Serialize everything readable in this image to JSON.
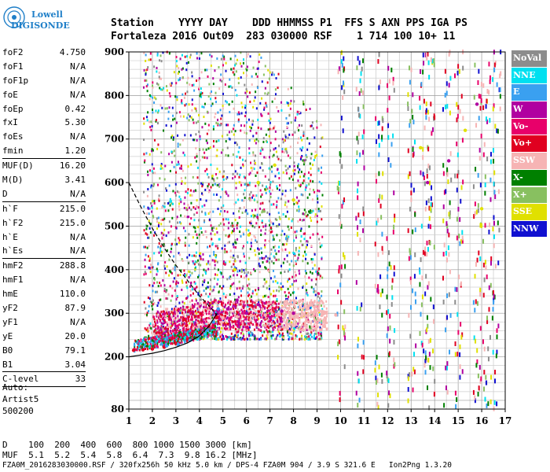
{
  "logo": {
    "line1": "Lowell",
    "line2": "DIGISONDE"
  },
  "header": {
    "row1": "Station    YYYY DAY    DDD HHMMSS P1  FFS S AXN PPS IGA PS",
    "row2": "Fortaleza 2016 Out09  283 030000 RSF    1 714 100 10+ 11"
  },
  "params": [
    {
      "k": "foF2",
      "v": "4.750"
    },
    {
      "k": "foF1",
      "v": "N/A"
    },
    {
      "k": "foF1p",
      "v": "N/A"
    },
    {
      "k": "foE",
      "v": "N/A"
    },
    {
      "k": "foEp",
      "v": "0.42"
    },
    {
      "k": "fxI",
      "v": "5.30"
    },
    {
      "k": "foEs",
      "v": "N/A"
    },
    {
      "k": "fmin",
      "v": "1.20"
    },
    {
      "sep": true
    },
    {
      "k": "MUF(D)",
      "v": "16.20"
    },
    {
      "k": "M(D)",
      "v": "3.41"
    },
    {
      "k": "D",
      "v": "N/A"
    },
    {
      "sep": true
    },
    {
      "k": "h`F",
      "v": "215.0"
    },
    {
      "k": "h`F2",
      "v": "215.0"
    },
    {
      "k": "h`E",
      "v": "N/A"
    },
    {
      "k": "h`Es",
      "v": "N/A"
    },
    {
      "sep": true
    },
    {
      "k": "hmF2",
      "v": "288.8"
    },
    {
      "k": "hmF1",
      "v": "N/A"
    },
    {
      "k": "hmE",
      "v": "110.0"
    },
    {
      "k": "yF2",
      "v": "87.9"
    },
    {
      "k": "yF1",
      "v": "N/A"
    },
    {
      "k": "yE",
      "v": "20.0"
    },
    {
      "k": "B0",
      "v": "79.1"
    },
    {
      "k": "B1",
      "v": "3.04"
    },
    {
      "sep": true
    },
    {
      "k": "C-level",
      "v": "33"
    },
    {
      "sep": true
    }
  ],
  "auto": [
    "Auto:",
    "Artist5",
    "500200"
  ],
  "legend": [
    {
      "label": "NoVal",
      "color": "#8c8c8c"
    },
    {
      "label": "NNE",
      "color": "#00e0f0"
    },
    {
      "label": "E",
      "color": "#3aa0f0"
    },
    {
      "label": "W",
      "color": "#b000a0"
    },
    {
      "label": "Vo-",
      "color": "#e8006a"
    },
    {
      "label": "Vo+",
      "color": "#e00020"
    },
    {
      "label": "SSW",
      "color": "#f6b4b4"
    },
    {
      "label": "X-",
      "color": "#008000"
    },
    {
      "label": "X+",
      "color": "#88c060"
    },
    {
      "label": "SSE",
      "color": "#e0e000"
    },
    {
      "label": "NNW",
      "color": "#1010d0"
    }
  ],
  "bottom": {
    "row1": "D    100  200  400  600  800 1000 1500 3000 [km]",
    "row2": "MUF  5.1  5.2  5.4  5.8  6.4  7.3  9.8 16.2 [MHz]"
  },
  "footer": "FZA0M_2016283030000.RSF / 320fx256h 50 kHz 5.0 km / DPS-4 FZA0M 904 / 3.9 S 321.6 E   Ion2Png 1.3.20",
  "chart_data": {
    "type": "scatter",
    "title": "",
    "xlabel": "",
    "ylabel": "",
    "xlim": [
      1,
      17
    ],
    "ylim": [
      80,
      900
    ],
    "x_ticks": [
      1,
      2,
      3,
      4,
      5,
      6,
      7,
      8,
      9,
      10,
      11,
      12,
      13,
      14,
      15,
      16,
      17
    ],
    "y_ticks": [
      80,
      200,
      300,
      400,
      500,
      600,
      700,
      800,
      900
    ],
    "grid": true,
    "series": [
      {
        "name": "trace",
        "color": "#e00020",
        "x": [
          1.2,
          1.6,
          2.0,
          2.5,
          3.0,
          3.5,
          4.0,
          4.4,
          4.75
        ],
        "y": [
          215,
          216,
          218,
          222,
          230,
          240,
          255,
          270,
          290
        ]
      },
      {
        "name": "E",
        "color": "#3aa0f0",
        "x": [
          2.6,
          3.1,
          3.6,
          4.0,
          4.3,
          4.6,
          4.8
        ],
        "y": [
          225,
          228,
          238,
          248,
          262,
          280,
          310
        ]
      },
      {
        "name": "SSW",
        "color": "#f6b4b4",
        "x": [
          5.0,
          5.6,
          6.2,
          6.8,
          7.4,
          8.0,
          8.6,
          9.2,
          9.8
        ],
        "y": [
          290,
          292,
          295,
          296,
          297,
          297,
          296,
          295,
          296
        ]
      },
      {
        "name": "W",
        "color": "#b000a0",
        "x": [
          5.2,
          5.6,
          6.0,
          6.5,
          7.0,
          7.5,
          8.0,
          13.7,
          14.6,
          15.8
        ],
        "y": [
          310,
          330,
          300,
          320,
          290,
          305,
          300,
          600,
          650,
          780
        ]
      },
      {
        "name": "SSE",
        "color": "#e0e000",
        "x": [
          5.5,
          6.1,
          6.5,
          7.2,
          8.0,
          13.4,
          15.3,
          16.0
        ],
        "y": [
          400,
          480,
          600,
          640,
          560,
          680,
          720,
          540
        ]
      }
    ],
    "model_curves": [
      {
        "name": "profile",
        "style": "solid",
        "x": [
          1.0,
          1.5,
          2.0,
          2.5,
          3.0,
          3.5,
          4.0,
          4.4,
          4.75
        ],
        "y": [
          200,
          204,
          208,
          214,
          222,
          232,
          248,
          270,
          300
        ]
      },
      {
        "name": "dashed",
        "style": "dashed",
        "x": [
          1.0,
          1.5,
          2.0,
          2.5,
          3.0,
          3.5,
          4.0,
          4.5,
          4.75
        ],
        "y": [
          600,
          545,
          495,
          450,
          410,
          375,
          340,
          312,
          295
        ]
      }
    ]
  }
}
